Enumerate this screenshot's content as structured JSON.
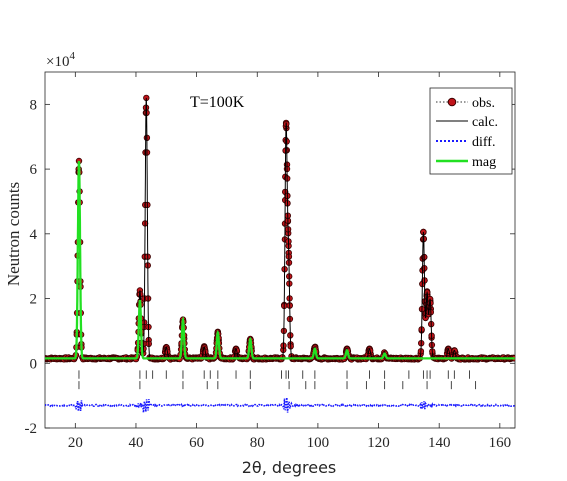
{
  "chart_data": {
    "type": "line",
    "xlabel": "2θ, degrees",
    "ylabel": "Neutron counts",
    "y_multiplier": "×10",
    "y_multiplier_exp": "4",
    "annotation": "T=100K",
    "xlim": [
      10,
      165
    ],
    "ylim": [
      -2,
      9
    ],
    "xticks": [
      20,
      40,
      60,
      80,
      100,
      120,
      140,
      160
    ],
    "yticks": [
      -2,
      0,
      2,
      4,
      6,
      8
    ],
    "grid": false,
    "legend_position": "top-right",
    "background": 0.15,
    "diff_offset": -1.3,
    "peaks": [
      {
        "x": 21.2,
        "obs": 6.1,
        "mag": 6.1
      },
      {
        "x": 41.3,
        "obs": 2.1,
        "mag": 1.8
      },
      {
        "x": 43.4,
        "obs": 8.05,
        "mag": 0.0
      },
      {
        "x": 50.0,
        "obs": 0.35,
        "mag": 0.0
      },
      {
        "x": 55.5,
        "obs": 1.2,
        "mag": 1.2
      },
      {
        "x": 62.5,
        "obs": 0.35,
        "mag": 0.0
      },
      {
        "x": 67.0,
        "obs": 0.8,
        "mag": 0.8
      },
      {
        "x": 73.0,
        "obs": 0.3,
        "mag": 0.0
      },
      {
        "x": 77.7,
        "obs": 0.6,
        "mag": 0.6
      },
      {
        "x": 89.5,
        "obs": 7.05,
        "mag": 0.0
      },
      {
        "x": 90.3,
        "obs": 3.1,
        "mag": 0.0
      },
      {
        "x": 99.0,
        "obs": 0.35,
        "mag": 0.3
      },
      {
        "x": 109.6,
        "obs": 0.3,
        "mag": 0.25
      },
      {
        "x": 117.0,
        "obs": 0.3,
        "mag": 0.0
      },
      {
        "x": 122.0,
        "obs": 0.2,
        "mag": 0.15
      },
      {
        "x": 134.8,
        "obs": 3.9,
        "mag": 0.0
      },
      {
        "x": 136.0,
        "obs": 2.0,
        "mag": 0.0
      },
      {
        "x": 137.0,
        "obs": 1.8,
        "mag": 0.0
      },
      {
        "x": 143.0,
        "obs": 0.3,
        "mag": 0.0
      },
      {
        "x": 145.0,
        "obs": 0.25,
        "mag": 0.0
      }
    ],
    "ticks_row1": [
      21.2,
      41.3,
      43.4,
      45.5,
      50.0,
      55.5,
      62.5,
      64.5,
      67.0,
      73.0,
      77.7,
      88.0,
      89.5,
      90.3,
      95.0,
      99.0,
      109.6,
      117.0,
      122.0,
      130.0,
      134.8,
      136.0,
      137.0,
      143.0,
      145.0,
      150.0
    ],
    "ticks_row2": [
      21.2,
      41.3,
      55.5,
      63.5,
      67.0,
      77.7,
      90.5,
      96.0,
      99.0,
      109.6,
      116.0,
      122.0,
      128.0,
      136.0,
      144.0,
      152.0
    ],
    "legend": [
      {
        "label": "obs.",
        "style": "marker"
      },
      {
        "label": "calc.",
        "style": "solid"
      },
      {
        "label": "diff.",
        "style": "dotted"
      },
      {
        "label": "mag",
        "style": "green"
      }
    ],
    "colors": {
      "obs": "#c0141a",
      "obs_edge": "#3a0000",
      "calc": "#000000",
      "diff": "#1a1aff",
      "mag": "#22e022",
      "axis": "#262626"
    }
  }
}
